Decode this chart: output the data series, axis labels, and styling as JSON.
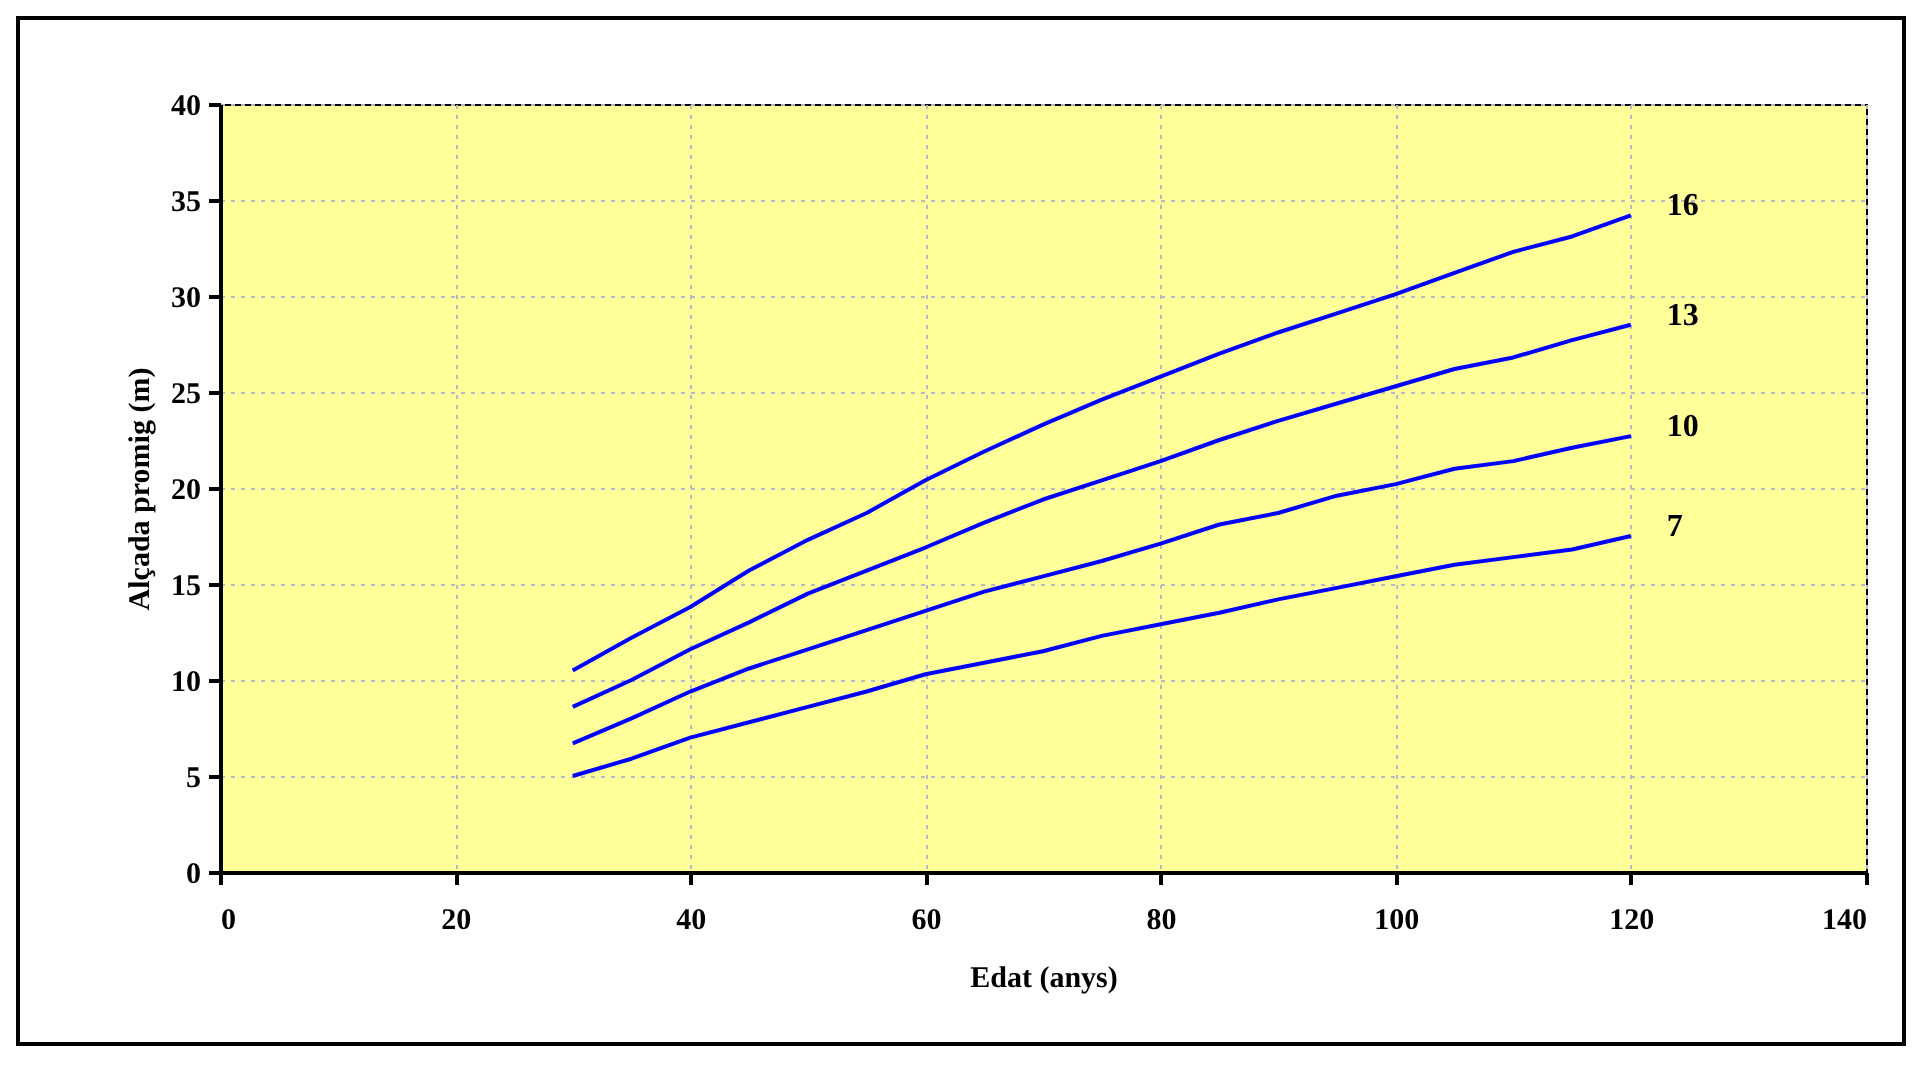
{
  "chart_data": {
    "type": "line",
    "xlabel": "Edat (anys)",
    "ylabel": "Alçada promig (m)",
    "x": [
      30,
      35,
      40,
      45,
      50,
      55,
      60,
      65,
      70,
      75,
      80,
      85,
      90,
      95,
      100,
      105,
      110,
      115,
      120
    ],
    "series": [
      {
        "name": "16",
        "color": "#0000ff",
        "values": [
          10.5,
          12.2,
          13.8,
          15.7,
          17.3,
          18.7,
          20.4,
          21.9,
          23.3,
          24.6,
          25.8,
          27.0,
          28.1,
          29.1,
          30.1,
          31.2,
          32.3,
          33.1,
          34.2
        ]
      },
      {
        "name": "13",
        "color": "#0000ff",
        "values": [
          8.6,
          10.0,
          11.6,
          13.0,
          14.5,
          15.7,
          16.9,
          18.2,
          19.4,
          20.4,
          21.4,
          22.5,
          23.5,
          24.4,
          25.3,
          26.2,
          26.8,
          27.7,
          28.5
        ]
      },
      {
        "name": "10",
        "color": "#0000ff",
        "values": [
          6.7,
          8.0,
          9.4,
          10.6,
          11.6,
          12.6,
          13.6,
          14.6,
          15.4,
          16.2,
          17.1,
          18.1,
          18.7,
          19.6,
          20.2,
          21.0,
          21.4,
          22.1,
          22.7
        ]
      },
      {
        "name": "7",
        "color": "#0000ff",
        "values": [
          5.0,
          5.9,
          7.0,
          7.8,
          8.6,
          9.4,
          10.3,
          10.9,
          11.5,
          12.3,
          12.9,
          13.5,
          14.2,
          14.8,
          15.4,
          16.0,
          16.4,
          16.8,
          17.5
        ]
      }
    ],
    "xlim": [
      0,
      140
    ],
    "xticks": [
      0,
      20,
      40,
      60,
      80,
      100,
      120,
      140
    ],
    "ylim": [
      0,
      40
    ],
    "yticks": [
      0,
      5,
      10,
      15,
      20,
      25,
      30,
      35,
      40
    ],
    "grid": true,
    "legend": false
  }
}
